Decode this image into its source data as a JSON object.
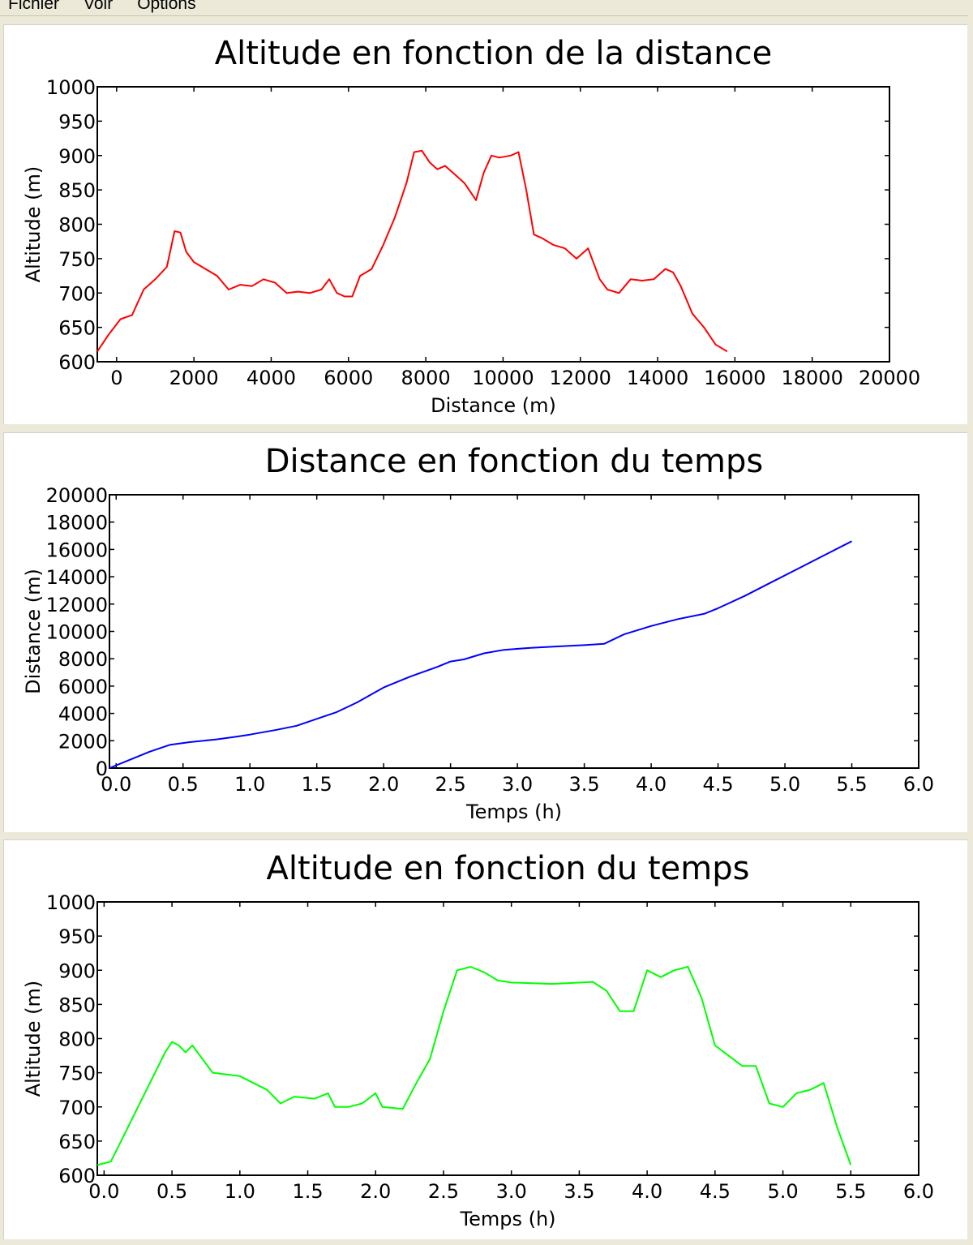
{
  "menu": [
    "Fichier",
    "Voir",
    "Options"
  ],
  "chart_data": [
    {
      "type": "line",
      "title": "Altitude en fonction de la distance",
      "xlabel": "Distance (m)",
      "ylabel": "Altitude (m)",
      "xlim": [
        -500,
        20000
      ],
      "ylim": [
        600,
        1000
      ],
      "xticks": [
        0,
        2000,
        4000,
        6000,
        8000,
        10000,
        12000,
        14000,
        16000,
        18000,
        20000
      ],
      "yticks": [
        600,
        650,
        700,
        750,
        800,
        850,
        900,
        950,
        1000
      ],
      "tick_labels_x": [
        "0",
        "2000",
        "4000",
        "6000",
        "8000",
        "10000",
        "12000",
        "14000",
        "16000",
        "18000",
        "20000"
      ],
      "tick_labels_y": [
        "600",
        "650",
        "700",
        "750",
        "800",
        "850",
        "900",
        "950",
        "1000"
      ],
      "grid": false,
      "color": "#ff0000",
      "series": [
        {
          "x": [
            -500,
            -200,
            100,
            400,
            700,
            1000,
            1300,
            1500,
            1650,
            1800,
            2000,
            2300,
            2600,
            2900,
            3200,
            3500,
            3800,
            4100,
            4400,
            4700,
            5000,
            5300,
            5500,
            5700,
            5900,
            6100,
            6300,
            6600,
            6900,
            7200,
            7500,
            7700,
            7900,
            8100,
            8300,
            8500,
            8700,
            9000,
            9300,
            9500,
            9700,
            9900,
            10200,
            10400,
            10600,
            10800,
            11000,
            11300,
            11600,
            11900,
            12200,
            12500,
            12700,
            13000,
            13300,
            13600,
            13900,
            14200,
            14400,
            14600,
            14900,
            15200,
            15500,
            15800
          ],
          "y": [
            615,
            640,
            662,
            668,
            705,
            720,
            738,
            790,
            788,
            760,
            745,
            735,
            725,
            705,
            712,
            710,
            720,
            715,
            700,
            702,
            700,
            705,
            720,
            700,
            695,
            695,
            725,
            735,
            770,
            810,
            860,
            905,
            907,
            890,
            880,
            885,
            875,
            860,
            835,
            875,
            900,
            897,
            900,
            905,
            850,
            785,
            780,
            770,
            765,
            750,
            765,
            720,
            705,
            700,
            720,
            718,
            720,
            735,
            730,
            710,
            670,
            650,
            625,
            615
          ]
        }
      ]
    },
    {
      "type": "line",
      "title": "Distance en fonction du temps",
      "xlabel": "Temps (h)",
      "ylabel": "Distance (m)",
      "xlim": [
        -0.05,
        6.0
      ],
      "ylim": [
        0,
        20000
      ],
      "xticks": [
        0.0,
        0.5,
        1.0,
        1.5,
        2.0,
        2.5,
        3.0,
        3.5,
        4.0,
        4.5,
        5.0,
        5.5,
        6.0
      ],
      "yticks": [
        0,
        2000,
        4000,
        6000,
        8000,
        10000,
        12000,
        14000,
        16000,
        18000,
        20000
      ],
      "tick_labels_x": [
        "0.0",
        "0.5",
        "1.0",
        "1.5",
        "2.0",
        "2.5",
        "3.0",
        "3.5",
        "4.0",
        "4.5",
        "5.0",
        "5.5",
        "6.0"
      ],
      "tick_labels_y": [
        "0",
        "2000",
        "4000",
        "6000",
        "8000",
        "10000",
        "12000",
        "14000",
        "16000",
        "18000",
        "20000"
      ],
      "grid": false,
      "color": "#0000ff",
      "series": [
        {
          "x": [
            -0.05,
            0.1,
            0.25,
            0.4,
            0.55,
            0.75,
            0.9,
            1.0,
            1.2,
            1.35,
            1.5,
            1.65,
            1.8,
            2.0,
            2.2,
            2.4,
            2.5,
            2.6,
            2.75,
            2.9,
            3.1,
            3.3,
            3.5,
            3.65,
            3.8,
            4.0,
            4.2,
            4.4,
            4.5,
            4.7,
            4.9,
            5.1,
            5.3,
            5.5
          ],
          "y": [
            0,
            600,
            1200,
            1700,
            1900,
            2100,
            2300,
            2450,
            2800,
            3100,
            3600,
            4100,
            4800,
            5900,
            6700,
            7400,
            7800,
            7950,
            8400,
            8650,
            8800,
            8900,
            9000,
            9100,
            9800,
            10400,
            10900,
            11300,
            11700,
            12600,
            13600,
            14600,
            15600,
            16600
          ]
        }
      ]
    },
    {
      "type": "line",
      "title": "Altitude en fonction du temps",
      "xlabel": "Temps (h)",
      "ylabel": "Altitude (m)",
      "xlim": [
        -0.05,
        6.0
      ],
      "ylim": [
        600,
        1000
      ],
      "xticks": [
        0.0,
        0.5,
        1.0,
        1.5,
        2.0,
        2.5,
        3.0,
        3.5,
        4.0,
        4.5,
        5.0,
        5.5,
        6.0
      ],
      "yticks": [
        600,
        650,
        700,
        750,
        800,
        850,
        900,
        950,
        1000
      ],
      "tick_labels_x": [
        "0.0",
        "0.5",
        "1.0",
        "1.5",
        "2.0",
        "2.5",
        "3.0",
        "3.5",
        "4.0",
        "4.5",
        "5.0",
        "5.5",
        "6.0"
      ],
      "tick_labels_y": [
        "600",
        "650",
        "700",
        "750",
        "800",
        "850",
        "900",
        "950",
        "1000"
      ],
      "grid": false,
      "color": "#00ff00",
      "series": [
        {
          "x": [
            -0.05,
            0.05,
            0.1,
            0.15,
            0.25,
            0.35,
            0.45,
            0.5,
            0.55,
            0.6,
            0.65,
            0.8,
            1.0,
            1.2,
            1.3,
            1.4,
            1.55,
            1.65,
            1.7,
            1.8,
            1.9,
            2.0,
            2.05,
            2.2,
            2.3,
            2.4,
            2.5,
            2.6,
            2.7,
            2.8,
            2.9,
            3.0,
            3.3,
            3.6,
            3.7,
            3.8,
            3.9,
            4.0,
            4.1,
            4.2,
            4.3,
            4.4,
            4.5,
            4.6,
            4.7,
            4.8,
            4.9,
            5.0,
            5.1,
            5.2,
            5.3,
            5.4,
            5.5
          ],
          "y": [
            615,
            620,
            640,
            660,
            700,
            740,
            780,
            795,
            790,
            780,
            790,
            750,
            745,
            725,
            705,
            715,
            712,
            720,
            700,
            700,
            705,
            720,
            700,
            697,
            735,
            770,
            840,
            900,
            905,
            897,
            885,
            882,
            880,
            883,
            870,
            840,
            840,
            900,
            890,
            900,
            905,
            860,
            790,
            775,
            760,
            760,
            705,
            700,
            720,
            725,
            735,
            670,
            615
          ]
        }
      ]
    }
  ]
}
